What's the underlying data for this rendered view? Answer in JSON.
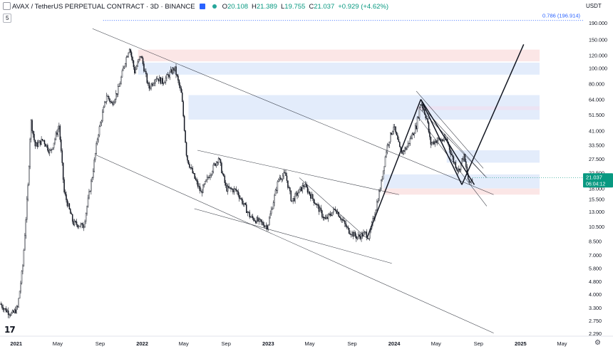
{
  "header": {
    "symbol": "AVAX / TetherUS PERPETUAL CONTRACT · 3D · BINANCE",
    "o_label": "O",
    "o_value": "20.108",
    "h_label": "H",
    "h_value": "21.389",
    "l_label": "L",
    "l_value": "19.755",
    "c_label": "C",
    "c_value": "21.037",
    "change": "+0.929 (+4.62%)",
    "indicator_count": "5",
    "currency": "USDT"
  },
  "price_tag": {
    "price": "21.037",
    "countdown": "06:04:12"
  },
  "fib_label": "0.786 (196.914)",
  "colors": {
    "up": "#089981",
    "candle": "#131722",
    "price_tag": "#089981",
    "blue_zone": "#e3ecfb",
    "red_zone": "#fbe6e6",
    "purple_zone": "#ece3f3",
    "fib_line": "#2962ff",
    "trend": "#131722",
    "grid": "#f0f3fa"
  },
  "chart_data": {
    "type": "candlestick",
    "scale": "log",
    "y_ticks": [
      "190.000",
      "150.000",
      "120.000",
      "100.000",
      "80.000",
      "64.000",
      "51.500",
      "41.000",
      "33.500",
      "27.500",
      "22.500",
      "18.000",
      "15.500",
      "13.000",
      "10.500",
      "8.500",
      "7.000",
      "5.800",
      "4.800",
      "4.000",
      "3.300",
      "2.750",
      "2.290"
    ],
    "y_range": [
      2.2,
      215
    ],
    "x_ticks": [
      "2021",
      "May",
      "Sep",
      "2022",
      "May",
      "Sep",
      "2023",
      "May",
      "Sep",
      "2024",
      "May",
      "Sep",
      "2025",
      "May"
    ],
    "x_range": [
      "2020-11-15",
      "2025-07-01"
    ],
    "last_date": "2024-08-15",
    "price_path": [
      [
        "2020-11-15",
        3.5
      ],
      [
        "2020-12-01",
        3.2
      ],
      [
        "2020-12-20",
        3.0
      ],
      [
        "2021-01-05",
        3.3
      ],
      [
        "2021-01-20",
        6.0
      ],
      [
        "2021-02-05",
        20
      ],
      [
        "2021-02-12",
        48
      ],
      [
        "2021-02-25",
        33
      ],
      [
        "2021-03-20",
        36
      ],
      [
        "2021-04-10",
        30
      ],
      [
        "2021-05-05",
        44
      ],
      [
        "2021-05-20",
        17
      ],
      [
        "2021-06-15",
        11
      ],
      [
        "2021-07-15",
        10.5
      ],
      [
        "2021-08-10",
        22
      ],
      [
        "2021-08-25",
        38
      ],
      [
        "2021-09-20",
        68
      ],
      [
        "2021-10-05",
        60
      ],
      [
        "2021-10-25",
        75
      ],
      [
        "2021-11-10",
        105
      ],
      [
        "2021-11-25",
        135
      ],
      [
        "2021-12-10",
        95
      ],
      [
        "2021-12-28",
        120
      ],
      [
        "2022-01-20",
        75
      ],
      [
        "2022-02-10",
        88
      ],
      [
        "2022-03-01",
        82
      ],
      [
        "2022-04-05",
        100
      ],
      [
        "2022-04-25",
        68
      ],
      [
        "2022-05-10",
        28
      ],
      [
        "2022-06-01",
        21
      ],
      [
        "2022-06-20",
        17
      ],
      [
        "2022-07-15",
        22
      ],
      [
        "2022-08-10",
        28
      ],
      [
        "2022-09-01",
        18
      ],
      [
        "2022-10-01",
        17.5
      ],
      [
        "2022-11-10",
        12
      ],
      [
        "2022-12-30",
        10.5
      ],
      [
        "2023-02-01",
        21
      ],
      [
        "2023-02-20",
        22
      ],
      [
        "2023-03-10",
        15
      ],
      [
        "2023-04-15",
        19
      ],
      [
        "2023-05-15",
        15
      ],
      [
        "2023-06-15",
        11.5
      ],
      [
        "2023-07-15",
        13.5
      ],
      [
        "2023-08-20",
        10
      ],
      [
        "2023-09-15",
        9.0
      ],
      [
        "2023-10-10",
        9.5
      ],
      [
        "2023-10-20",
        9.0
      ],
      [
        "2023-11-10",
        14
      ],
      [
        "2023-11-25",
        20
      ],
      [
        "2023-12-10",
        32
      ],
      [
        "2023-12-30",
        44
      ],
      [
        "2024-01-20",
        30
      ],
      [
        "2024-02-05",
        32
      ],
      [
        "2024-03-05",
        44
      ],
      [
        "2024-03-18",
        62
      ],
      [
        "2024-04-05",
        48
      ],
      [
        "2024-04-15",
        34
      ],
      [
        "2024-05-05",
        36
      ],
      [
        "2024-06-01",
        36
      ],
      [
        "2024-06-20",
        27
      ],
      [
        "2024-07-05",
        23
      ],
      [
        "2024-07-20",
        29
      ],
      [
        "2024-08-05",
        19
      ],
      [
        "2024-08-15",
        21.037
      ]
    ],
    "zones": [
      {
        "color": "red",
        "from": "2021-12-20",
        "to": "2025-02-25",
        "low": 110,
        "high": 130
      },
      {
        "color": "blue",
        "from": "2021-12-20",
        "to": "2025-02-25",
        "low": 91,
        "high": 108
      },
      {
        "color": "blue",
        "from": "2022-05-15",
        "to": "2025-02-25",
        "low": 48,
        "high": 68
      },
      {
        "color": "purple",
        "from": "2024-03-05",
        "to": "2025-02-25",
        "low": 55,
        "high": 58
      },
      {
        "color": "blue",
        "from": "2024-06-01",
        "to": "2025-02-25",
        "low": 26,
        "high": 31
      },
      {
        "color": "blue",
        "from": "2023-12-01",
        "to": "2025-02-25",
        "low": 18,
        "high": 22
      },
      {
        "color": "red",
        "from": "2023-12-01",
        "to": "2025-02-25",
        "low": 16.5,
        "high": 18
      }
    ],
    "fib_level": {
      "label": "0.786",
      "value": 196.914
    },
    "trendlines": [
      {
        "from": [
          "2021-08-10",
          175
        ],
        "to": [
          "2024-10-15",
          16.5
        ],
        "style": "thin"
      },
      {
        "from": [
          "2021-08-20",
          29
        ],
        "to": [
          "2024-10-15",
          2.3
        ],
        "style": "thin"
      },
      {
        "from": [
          "2022-06-10",
          31
        ],
        "to": [
          "2024-01-15",
          16.5
        ],
        "style": "thin"
      },
      {
        "from": [
          "2022-06-01",
          13.5
        ],
        "to": [
          "2023-12-25",
          6.2
        ],
        "style": "thin"
      },
      {
        "from": [
          "2023-04-01",
          21
        ],
        "to": [
          "2023-10-10",
          9.0
        ],
        "style": "thin"
      },
      {
        "from": [
          "2024-03-05",
          72
        ],
        "to": [
          "2024-09-15",
          24
        ],
        "style": "thin"
      },
      {
        "from": [
          "2024-03-15",
          60
        ],
        "to": [
          "2024-09-20",
          21.5
        ],
        "style": "thin"
      },
      {
        "from": [
          "2024-03-10",
          50
        ],
        "to": [
          "2024-09-25",
          14
        ],
        "style": "thin"
      },
      {
        "from": [
          "2024-03-15",
          56
        ],
        "to": [
          "2024-09-25",
          21
        ],
        "style": "thin"
      },
      {
        "from": [
          "2023-10-15",
          9.0
        ],
        "to": [
          "2024-03-18",
          64
        ],
        "style": "bold"
      },
      {
        "from": [
          "2024-03-18",
          64
        ],
        "to": [
          "2024-07-15",
          19
        ],
        "style": "bold"
      },
      {
        "from": [
          "2024-07-15",
          19
        ],
        "to": [
          "2025-01-10",
          140
        ],
        "style": "bold"
      },
      {
        "from": [
          "2024-03-18",
          64
        ],
        "to": [
          "2024-08-20",
          19
        ],
        "style": "bold"
      }
    ]
  }
}
